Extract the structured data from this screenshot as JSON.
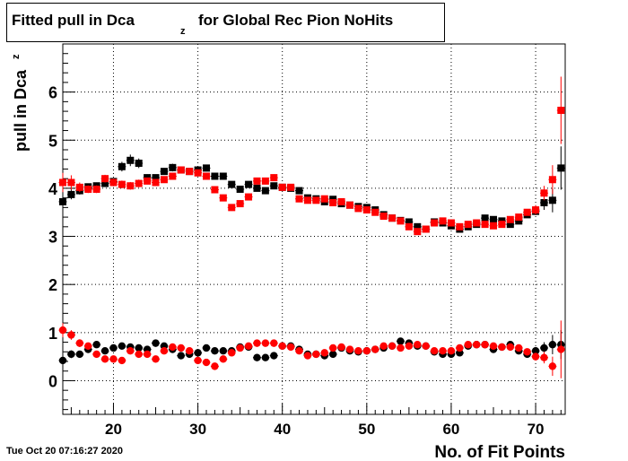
{
  "title": {
    "main": "Fitted pull in Dca",
    "sub": "z",
    "rest": " for Global Rec Pion NoHits"
  },
  "datestamp": "Tue Oct 20 07:16:27 2020",
  "chart_data": {
    "type": "scatter",
    "xlabel": "No. of Fit Points",
    "ylabel": "pull in Dca",
    "ylabel_sub": "z",
    "xlim": [
      14,
      73.5
    ],
    "ylim": [
      -0.7,
      7
    ],
    "xticks": [
      20,
      30,
      40,
      50,
      60,
      70
    ],
    "yticks": [
      0,
      1,
      2,
      3,
      4,
      5,
      6
    ],
    "grid": true,
    "colors": {
      "black": "#000000",
      "red": "#ff0000"
    },
    "series": [
      {
        "marker": "square",
        "color": "#000000",
        "x": [
          14,
          15,
          16,
          17,
          18,
          19,
          20,
          21,
          22,
          23,
          24,
          25,
          26,
          27,
          28,
          29,
          30,
          31,
          32,
          33,
          34,
          35,
          36,
          37,
          38,
          39,
          40,
          41,
          42,
          43,
          44,
          45,
          46,
          47,
          48,
          49,
          50,
          51,
          52,
          53,
          54,
          55,
          56,
          57,
          58,
          59,
          60,
          61,
          62,
          63,
          64,
          65,
          66,
          67,
          68,
          69,
          70,
          71,
          72,
          73
        ],
        "y": [
          3.72,
          3.87,
          3.95,
          4.03,
          4.05,
          4.1,
          4.14,
          4.45,
          4.58,
          4.52,
          4.22,
          4.22,
          4.35,
          4.43,
          4.38,
          4.35,
          4.38,
          4.42,
          4.25,
          4.25,
          4.08,
          3.98,
          4.08,
          4.0,
          3.95,
          4.05,
          4.02,
          4.0,
          3.95,
          3.8,
          3.78,
          3.72,
          3.77,
          3.68,
          3.65,
          3.62,
          3.6,
          3.55,
          3.45,
          3.38,
          3.33,
          3.3,
          3.2,
          3.15,
          3.3,
          3.28,
          3.22,
          3.15,
          3.2,
          3.25,
          3.38,
          3.35,
          3.32,
          3.25,
          3.32,
          3.45,
          3.52,
          3.7,
          3.75,
          4.42
        ],
        "err": [
          0.12,
          0.1,
          0.08,
          0.07,
          0.07,
          0.07,
          0.07,
          0.1,
          0.12,
          0.1,
          0.07,
          0.06,
          0.07,
          0.08,
          0.06,
          0.06,
          0.06,
          0.07,
          0.06,
          0.06,
          0.06,
          0.06,
          0.06,
          0.06,
          0.06,
          0.06,
          0.06,
          0.06,
          0.06,
          0.06,
          0.06,
          0.06,
          0.06,
          0.06,
          0.06,
          0.06,
          0.06,
          0.06,
          0.06,
          0.06,
          0.06,
          0.06,
          0.06,
          0.06,
          0.06,
          0.06,
          0.06,
          0.06,
          0.06,
          0.06,
          0.06,
          0.06,
          0.06,
          0.06,
          0.06,
          0.06,
          0.08,
          0.15,
          0.25,
          0.45
        ]
      },
      {
        "marker": "square",
        "color": "#ff0000",
        "x": [
          14,
          15,
          16,
          17,
          18,
          19,
          20,
          21,
          22,
          23,
          24,
          25,
          26,
          27,
          28,
          29,
          30,
          31,
          32,
          33,
          34,
          35,
          36,
          37,
          38,
          39,
          40,
          41,
          42,
          43,
          44,
          45,
          46,
          47,
          48,
          49,
          50,
          51,
          52,
          53,
          54,
          55,
          56,
          57,
          58,
          59,
          60,
          61,
          62,
          63,
          64,
          65,
          66,
          67,
          68,
          69,
          70,
          71,
          72,
          73
        ],
        "y": [
          4.12,
          4.12,
          4.02,
          3.98,
          3.98,
          4.2,
          4.12,
          4.08,
          4.05,
          4.1,
          4.15,
          4.12,
          4.18,
          4.25,
          4.38,
          4.35,
          4.32,
          4.25,
          3.97,
          3.8,
          3.6,
          3.68,
          3.82,
          4.15,
          4.15,
          4.22,
          4.02,
          4.02,
          3.78,
          3.75,
          3.75,
          3.78,
          3.7,
          3.72,
          3.65,
          3.58,
          3.55,
          3.5,
          3.42,
          3.38,
          3.32,
          3.2,
          3.1,
          3.15,
          3.28,
          3.32,
          3.28,
          3.2,
          3.25,
          3.28,
          3.25,
          3.22,
          3.25,
          3.35,
          3.4,
          3.5,
          3.55,
          3.9,
          4.18,
          5.62
        ],
        "err": [
          0.2,
          0.15,
          0.1,
          0.08,
          0.08,
          0.08,
          0.08,
          0.08,
          0.08,
          0.08,
          0.07,
          0.07,
          0.07,
          0.07,
          0.07,
          0.07,
          0.07,
          0.07,
          0.07,
          0.07,
          0.07,
          0.07,
          0.07,
          0.07,
          0.07,
          0.07,
          0.07,
          0.07,
          0.06,
          0.06,
          0.06,
          0.06,
          0.06,
          0.06,
          0.06,
          0.06,
          0.06,
          0.06,
          0.06,
          0.06,
          0.06,
          0.06,
          0.06,
          0.06,
          0.06,
          0.06,
          0.06,
          0.06,
          0.06,
          0.06,
          0.06,
          0.06,
          0.06,
          0.06,
          0.06,
          0.06,
          0.1,
          0.15,
          0.3,
          0.7
        ]
      },
      {
        "marker": "circle",
        "color": "#000000",
        "x": [
          14,
          15,
          16,
          17,
          18,
          19,
          20,
          21,
          22,
          23,
          24,
          25,
          26,
          27,
          28,
          29,
          30,
          31,
          32,
          33,
          34,
          35,
          36,
          37,
          38,
          39,
          40,
          41,
          42,
          43,
          44,
          45,
          46,
          47,
          48,
          49,
          50,
          51,
          52,
          53,
          54,
          55,
          56,
          57,
          58,
          59,
          60,
          61,
          62,
          63,
          64,
          65,
          66,
          67,
          68,
          69,
          70,
          71,
          72,
          73
        ],
        "y": [
          0.42,
          0.55,
          0.55,
          0.65,
          0.75,
          0.62,
          0.68,
          0.72,
          0.7,
          0.68,
          0.65,
          0.78,
          0.72,
          0.65,
          0.52,
          0.55,
          0.58,
          0.68,
          0.62,
          0.62,
          0.62,
          0.7,
          0.7,
          0.48,
          0.48,
          0.52,
          0.72,
          0.72,
          0.65,
          0.55,
          0.55,
          0.52,
          0.55,
          0.68,
          0.62,
          0.6,
          0.62,
          0.65,
          0.68,
          0.72,
          0.82,
          0.78,
          0.72,
          0.72,
          0.6,
          0.55,
          0.55,
          0.58,
          0.72,
          0.75,
          0.75,
          0.65,
          0.7,
          0.75,
          0.62,
          0.55,
          0.62,
          0.68,
          0.75,
          0.75
        ],
        "err": [
          0.1,
          0.08,
          0.07,
          0.06,
          0.06,
          0.06,
          0.06,
          0.06,
          0.06,
          0.06,
          0.06,
          0.06,
          0.06,
          0.06,
          0.06,
          0.06,
          0.06,
          0.06,
          0.06,
          0.06,
          0.06,
          0.06,
          0.06,
          0.06,
          0.06,
          0.06,
          0.06,
          0.06,
          0.06,
          0.06,
          0.06,
          0.06,
          0.06,
          0.06,
          0.06,
          0.06,
          0.06,
          0.06,
          0.06,
          0.06,
          0.06,
          0.06,
          0.06,
          0.06,
          0.06,
          0.06,
          0.06,
          0.06,
          0.06,
          0.06,
          0.06,
          0.06,
          0.06,
          0.06,
          0.06,
          0.06,
          0.08,
          0.12,
          0.2,
          0.3
        ]
      },
      {
        "marker": "circle",
        "color": "#ff0000",
        "x": [
          14,
          15,
          16,
          17,
          18,
          19,
          20,
          21,
          22,
          23,
          24,
          25,
          26,
          27,
          28,
          29,
          30,
          31,
          32,
          33,
          34,
          35,
          36,
          37,
          38,
          39,
          40,
          41,
          42,
          43,
          44,
          45,
          46,
          47,
          48,
          49,
          50,
          51,
          52,
          53,
          54,
          55,
          56,
          57,
          58,
          59,
          60,
          61,
          62,
          63,
          64,
          65,
          66,
          67,
          68,
          69,
          70,
          71,
          72,
          73
        ],
        "y": [
          1.05,
          0.95,
          0.78,
          0.72,
          0.55,
          0.45,
          0.45,
          0.42,
          0.62,
          0.55,
          0.55,
          0.45,
          0.62,
          0.7,
          0.68,
          0.62,
          0.42,
          0.38,
          0.3,
          0.45,
          0.58,
          0.68,
          0.72,
          0.78,
          0.78,
          0.78,
          0.72,
          0.7,
          0.62,
          0.52,
          0.55,
          0.58,
          0.68,
          0.7,
          0.65,
          0.62,
          0.62,
          0.65,
          0.72,
          0.72,
          0.68,
          0.72,
          0.75,
          0.72,
          0.62,
          0.62,
          0.62,
          0.68,
          0.75,
          0.75,
          0.75,
          0.72,
          0.7,
          0.7,
          0.68,
          0.6,
          0.5,
          0.48,
          0.3,
          0.65
        ],
        "err": [
          0.15,
          0.1,
          0.08,
          0.07,
          0.06,
          0.06,
          0.06,
          0.06,
          0.06,
          0.06,
          0.06,
          0.06,
          0.06,
          0.06,
          0.06,
          0.06,
          0.06,
          0.06,
          0.06,
          0.06,
          0.06,
          0.06,
          0.06,
          0.06,
          0.06,
          0.06,
          0.06,
          0.06,
          0.06,
          0.06,
          0.06,
          0.06,
          0.06,
          0.06,
          0.06,
          0.06,
          0.06,
          0.06,
          0.06,
          0.06,
          0.06,
          0.06,
          0.06,
          0.06,
          0.06,
          0.06,
          0.06,
          0.06,
          0.06,
          0.06,
          0.06,
          0.06,
          0.06,
          0.06,
          0.06,
          0.06,
          0.08,
          0.12,
          0.2,
          0.6
        ]
      }
    ]
  }
}
